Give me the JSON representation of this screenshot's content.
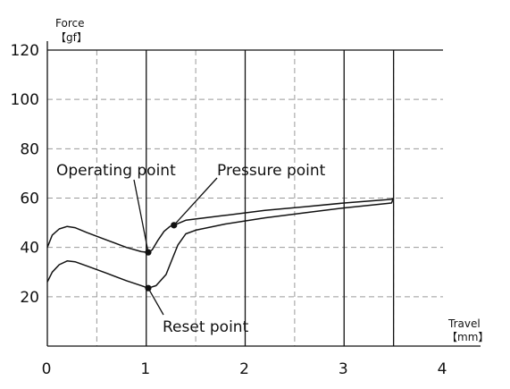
{
  "chart_data": {
    "type": "line",
    "title": "",
    "ylabel": "Force",
    "ylabel_unit": "【gf】",
    "xlabel": "Travel",
    "xlabel_unit": "【mm】",
    "xlim": [
      0,
      4
    ],
    "ylim": [
      0,
      120
    ],
    "x_ticks": [
      "0",
      "1",
      "2",
      "3",
      "4"
    ],
    "y_ticks": [
      "20",
      "40",
      "60",
      "80",
      "100",
      "120"
    ],
    "grid": "dashed, every 0.5 mm and 20 gf",
    "series": [
      {
        "x": [
          0,
          0.05,
          0.12,
          0.2,
          0.28,
          0.4,
          0.6,
          0.8,
          0.95,
          1.02,
          1.06,
          1.12,
          1.18,
          1.24,
          1.28,
          1.4,
          1.8,
          2.2,
          2.6,
          3.0,
          3.48,
          3.5
        ],
        "y": [
          40,
          45,
          47.5,
          48.5,
          48,
          46,
          43,
          40,
          38.3,
          38,
          39,
          43,
          46.5,
          48.5,
          49,
          51,
          53,
          55,
          56.5,
          58,
          59.5,
          60
        ]
      },
      {
        "x": [
          0,
          0.05,
          0.12,
          0.2,
          0.28,
          0.4,
          0.6,
          0.8,
          0.95,
          1.02,
          1.1,
          1.2,
          1.26,
          1.32,
          1.4,
          1.5,
          1.8,
          2.2,
          2.6,
          3.0,
          3.48,
          3.5
        ],
        "y": [
          26,
          30,
          33,
          34.5,
          34.2,
          32.5,
          29.5,
          26.5,
          24.5,
          23.5,
          24.5,
          29,
          35,
          41,
          45.5,
          47,
          49.5,
          52,
          54,
          56,
          58,
          60
        ]
      }
    ],
    "points": [
      {
        "label": "Operating point",
        "x": 1.02,
        "y": 38
      },
      {
        "label": "Pressure point",
        "x": 1.28,
        "y": 49
      },
      {
        "label": "Reset point",
        "x": 1.02,
        "y": 23.5
      }
    ],
    "solid_vertical_lines": [
      1,
      2,
      3,
      3.5
    ]
  }
}
